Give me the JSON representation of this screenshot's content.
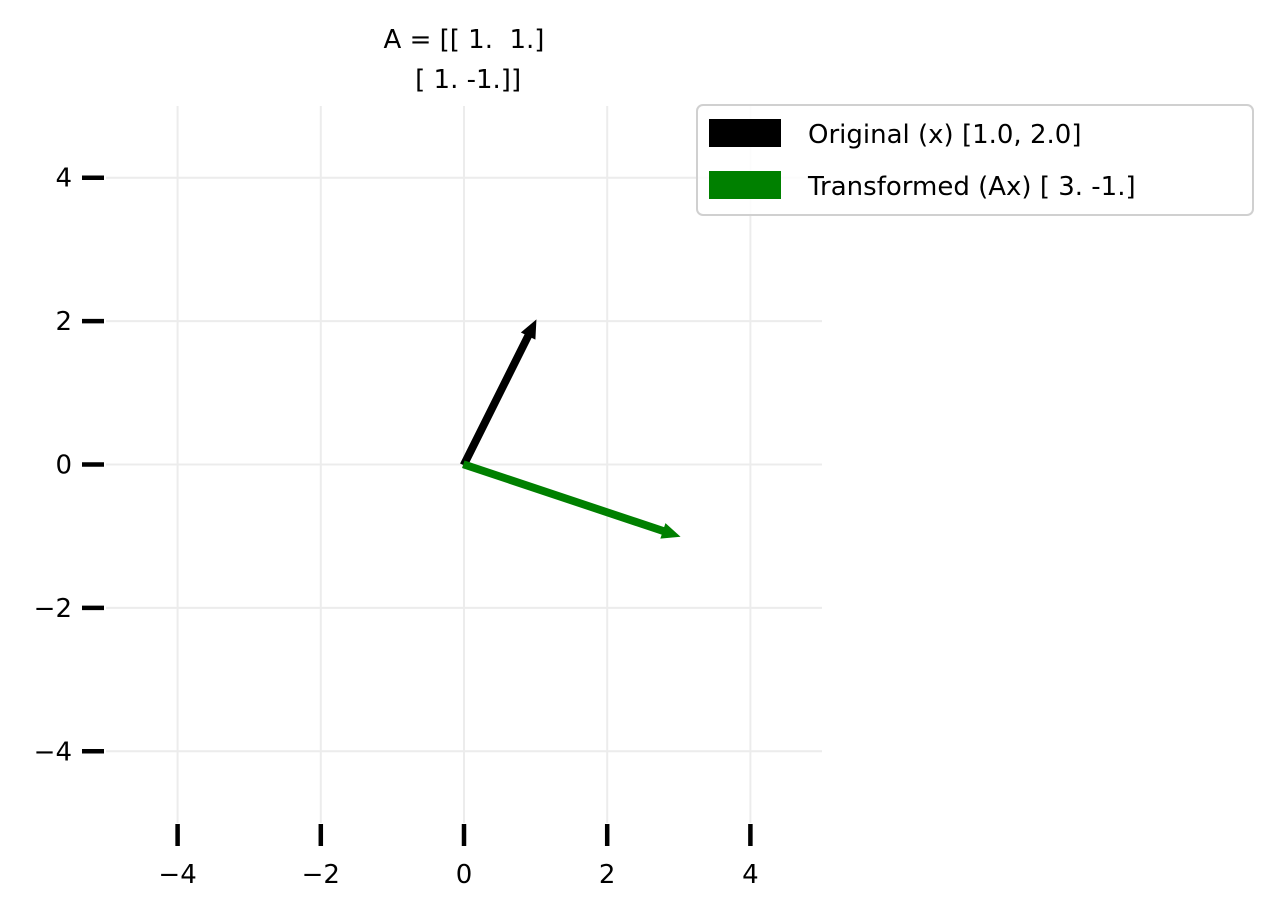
{
  "chart_data": {
    "type": "vector",
    "title_lines": [
      "A = [[ 1.  1.]",
      " [ 1. -1.]]"
    ],
    "xlim": [
      -5,
      5
    ],
    "ylim": [
      -5,
      5
    ],
    "grid": true,
    "x_ticks": [
      -4,
      -2,
      0,
      2,
      4
    ],
    "y_ticks": [
      -4,
      -2,
      0,
      2,
      4
    ],
    "x_tick_labels": [
      "−4",
      "−2",
      "0",
      "2",
      "4"
    ],
    "y_tick_labels": [
      "−4",
      "−2",
      "0",
      "2",
      "4"
    ],
    "legend_position": "top-right outside",
    "series": [
      {
        "name": "Original (x) [1.0, 2.0]",
        "origin": [
          0,
          0
        ],
        "vector": [
          1,
          2
        ],
        "color": "#000000"
      },
      {
        "name": "Transformed (Ax) [ 3. -1.]",
        "origin": [
          0,
          0
        ],
        "vector": [
          3,
          -1
        ],
        "color": "#008000"
      }
    ]
  }
}
